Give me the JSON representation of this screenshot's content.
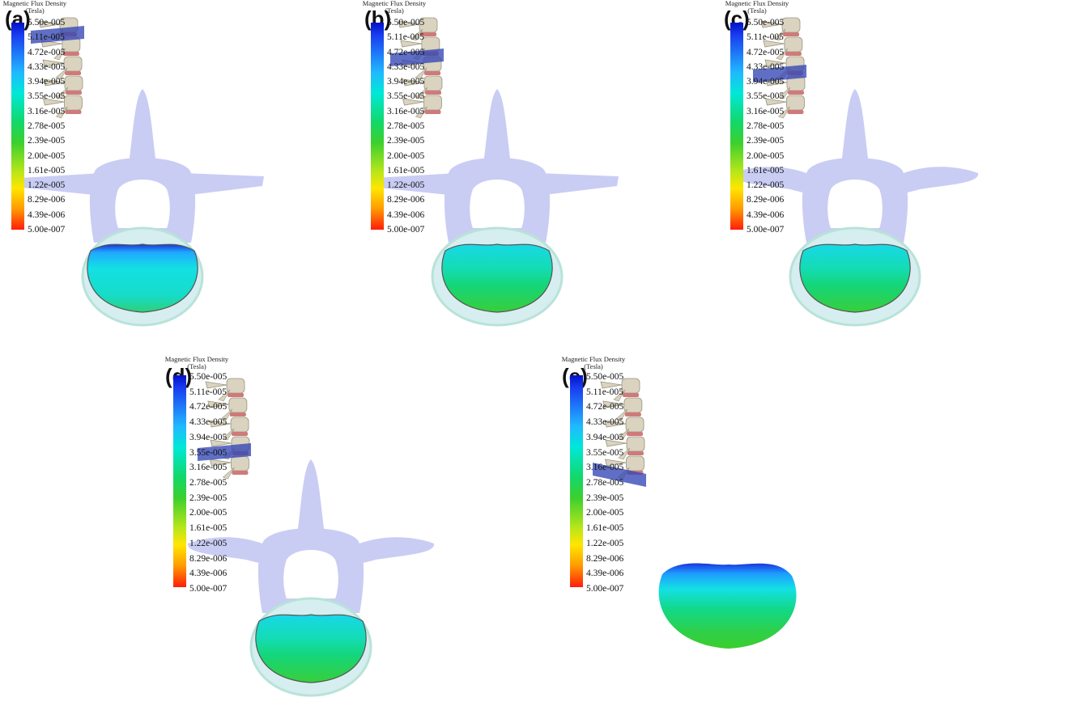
{
  "panels": [
    {
      "label": "(a)"
    },
    {
      "label": "(b)"
    },
    {
      "label": "(c)"
    },
    {
      "label": "(d)"
    },
    {
      "label": "(e)"
    }
  ],
  "legend": {
    "title_line1": "Magnetic Flux Density",
    "title_line2": "(Tesla)",
    "ticks": [
      "5.50e-005",
      "5.11e-005",
      "4.72e-005",
      "4.33e-005",
      "3.94e-005",
      "3.55e-005",
      "3.16e-005",
      "2.78e-005",
      "2.39e-005",
      "2.00e-005",
      "1.61e-005",
      "1.22e-005",
      "8.29e-006",
      "4.39e-006",
      "5.00e-007"
    ]
  },
  "colors": {
    "vertebra_fill": "#c9cdf4",
    "spine_bone": "#d9d3c0",
    "spine_disc": "#cf7a7a",
    "slice_plane": "#3347b5"
  }
}
